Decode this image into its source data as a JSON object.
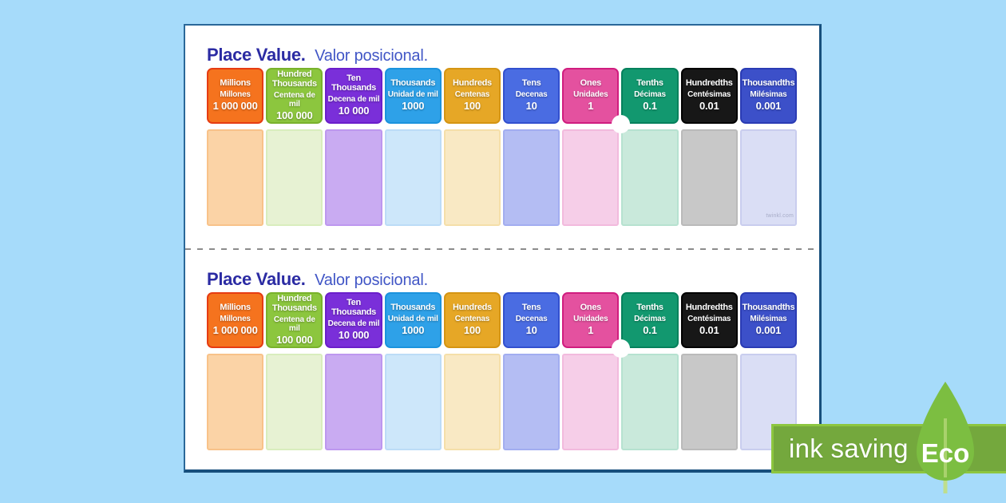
{
  "colors": {
    "page_bg": "#a6dbfa",
    "card_bg": "#ffffff",
    "card_border": "#174f7c",
    "title_primary": "#2b2ba3",
    "title_secondary": "#4156c6",
    "cut_line": "#8c8c8c",
    "decimal_point": "#ffffff",
    "banner_bg": "#74a83d",
    "banner_border": "#8dc63f",
    "banner_text": "#ffffff",
    "leaf_fill": "#7cbe41",
    "leaf_stem": "#bede8e",
    "watermark_text_color": "#a8adc8"
  },
  "charts": [
    {
      "title_en": "Place Value.",
      "title_es": "Valor posicional.",
      "watermark": "twinkl.com"
    },
    {
      "title_en": "Place Value.",
      "title_es": "Valor posicional.",
      "watermark": ""
    }
  ],
  "columns": [
    {
      "key": "millions",
      "en": "Millions",
      "es": "Millones",
      "value": "1 000 000",
      "header_bg": "#f5731e",
      "header_border": "#e63c12",
      "cell_bg": "#fbd3a6",
      "cell_border": "#f8c289"
    },
    {
      "key": "hundred-thousands",
      "en": "Hundred Thousands",
      "es": "Centena de mil",
      "value": "100 000",
      "header_bg": "#8cc63e",
      "header_border": "#79b22c",
      "cell_bg": "#e7f2d3",
      "cell_border": "#d9edbd"
    },
    {
      "key": "ten-thousands",
      "en": "Ten Thousands",
      "es": "Decena de mil",
      "value": "10 000",
      "header_bg": "#7a2fd9",
      "header_border": "#6b1ecb",
      "cell_bg": "#c9abf2",
      "cell_border": "#bd97ef"
    },
    {
      "key": "thousands",
      "en": "Thousands",
      "es": "Unidad de mil",
      "value": "1000",
      "header_bg": "#2ea1e8",
      "header_border": "#1b93dd",
      "cell_bg": "#cde7fa",
      "cell_border": "#bcdcf7"
    },
    {
      "key": "hundreds",
      "en": "Hundreds",
      "es": "Centenas",
      "value": "100",
      "header_bg": "#e6a726",
      "header_border": "#d59513",
      "cell_bg": "#f9e9c4",
      "cell_border": "#f5dfa9"
    },
    {
      "key": "tens",
      "en": "Tens",
      "es": "Decenas",
      "value": "10",
      "header_bg": "#4a6ce2",
      "header_border": "#3250cf",
      "cell_bg": "#b4bdf3",
      "cell_border": "#a2adf0"
    },
    {
      "key": "ones",
      "en": "Ones",
      "es": "Unidades",
      "value": "1",
      "header_bg": "#e4519f",
      "header_border": "#d01d7f",
      "cell_bg": "#f6cee8",
      "cell_border": "#f2badd"
    },
    {
      "key": "tenths",
      "en": "Tenths",
      "es": "Décimas",
      "value": "0.1",
      "header_bg": "#12986f",
      "header_border": "#05815c",
      "cell_bg": "#c9e9db",
      "cell_border": "#b6e2d0"
    },
    {
      "key": "hundredths",
      "en": "Hundredths",
      "es": "Centésimas",
      "value": "0.01",
      "header_bg": "#171717",
      "header_border": "#000000",
      "cell_bg": "#c8c8c8",
      "cell_border": "#bababa"
    },
    {
      "key": "thousandths",
      "en": "Thousandths",
      "es": "Milésimas",
      "value": "0.001",
      "header_bg": "#3c50c9",
      "header_border": "#2a3bb4",
      "cell_bg": "#dadef5",
      "cell_border": "#c9cdee"
    }
  ],
  "eco_badge": {
    "label": "ink saving",
    "eco": "Eco"
  }
}
